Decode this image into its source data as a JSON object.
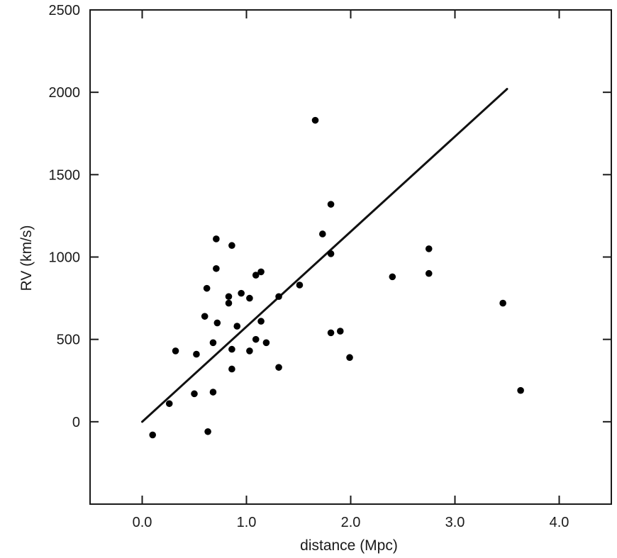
{
  "chart_data": {
    "type": "scatter",
    "title": "",
    "xlabel": "distance (Mpc)",
    "ylabel": "RV (km/s)",
    "xlim": [
      -0.5,
      4.5
    ],
    "ylim": [
      -500,
      2500
    ],
    "x_ticks": [
      0.0,
      1.0,
      2.0,
      3.0,
      4.0
    ],
    "x_tick_labels": [
      "0.0",
      "1.0",
      "2.0",
      "3.0",
      "4.0"
    ],
    "y_ticks": [
      0,
      500,
      1000,
      1500,
      2000,
      2500
    ],
    "y_tick_labels": [
      "0",
      "500",
      "1000",
      "1500",
      "2000",
      "2500"
    ],
    "grid": false,
    "marker_color": "#000000",
    "points": [
      {
        "x": 0.1,
        "y": -80
      },
      {
        "x": 0.26,
        "y": 110
      },
      {
        "x": 0.32,
        "y": 430
      },
      {
        "x": 0.5,
        "y": 170
      },
      {
        "x": 0.52,
        "y": 410
      },
      {
        "x": 0.6,
        "y": 640
      },
      {
        "x": 0.62,
        "y": 810
      },
      {
        "x": 0.63,
        "y": -60
      },
      {
        "x": 0.68,
        "y": 480
      },
      {
        "x": 0.68,
        "y": 180
      },
      {
        "x": 0.71,
        "y": 1110
      },
      {
        "x": 0.71,
        "y": 930
      },
      {
        "x": 0.72,
        "y": 600
      },
      {
        "x": 0.83,
        "y": 760
      },
      {
        "x": 0.83,
        "y": 720
      },
      {
        "x": 0.86,
        "y": 1070
      },
      {
        "x": 0.86,
        "y": 440
      },
      {
        "x": 0.86,
        "y": 320
      },
      {
        "x": 0.91,
        "y": 580
      },
      {
        "x": 0.95,
        "y": 780
      },
      {
        "x": 1.03,
        "y": 750
      },
      {
        "x": 1.03,
        "y": 430
      },
      {
        "x": 1.09,
        "y": 890
      },
      {
        "x": 1.09,
        "y": 500
      },
      {
        "x": 1.14,
        "y": 910
      },
      {
        "x": 1.14,
        "y": 610
      },
      {
        "x": 1.19,
        "y": 480
      },
      {
        "x": 1.31,
        "y": 760
      },
      {
        "x": 1.31,
        "y": 330
      },
      {
        "x": 1.51,
        "y": 830
      },
      {
        "x": 1.66,
        "y": 1830
      },
      {
        "x": 1.73,
        "y": 1140
      },
      {
        "x": 1.81,
        "y": 1320
      },
      {
        "x": 1.81,
        "y": 1020
      },
      {
        "x": 1.81,
        "y": 540
      },
      {
        "x": 1.9,
        "y": 550
      },
      {
        "x": 1.99,
        "y": 390
      },
      {
        "x": 2.4,
        "y": 880
      },
      {
        "x": 2.75,
        "y": 1050
      },
      {
        "x": 2.75,
        "y": 900
      },
      {
        "x": 3.46,
        "y": 720
      },
      {
        "x": 3.63,
        "y": 190
      }
    ],
    "fit_line": {
      "x": [
        0.0,
        3.5
      ],
      "y": [
        0,
        2020
      ]
    }
  }
}
